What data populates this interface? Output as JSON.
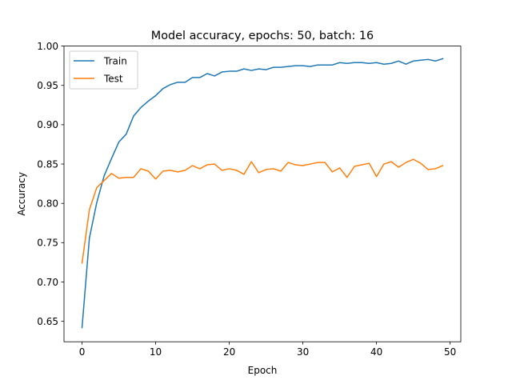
{
  "chart_data": {
    "type": "line",
    "title": "Model accuracy, epochs: 50, batch: 16",
    "xlabel": "Epoch",
    "ylabel": "Accuracy",
    "xlim": [
      -2.45,
      51.45
    ],
    "ylim": [
      0.624,
      1.0
    ],
    "xticks": [
      0,
      10,
      20,
      30,
      40,
      50
    ],
    "xtick_labels": [
      "0",
      "10",
      "20",
      "30",
      "40",
      "50"
    ],
    "yticks": [
      0.65,
      0.7,
      0.75,
      0.8,
      0.85,
      0.9,
      0.95,
      1.0
    ],
    "ytick_labels": [
      "0.65",
      "0.70",
      "0.75",
      "0.80",
      "0.85",
      "0.90",
      "0.95",
      "1.00"
    ],
    "grid": false,
    "legend": {
      "position": "top-left",
      "entries": [
        "Train",
        "Test"
      ]
    },
    "x": [
      0,
      1,
      2,
      3,
      4,
      5,
      6,
      7,
      8,
      9,
      10,
      11,
      12,
      13,
      14,
      15,
      16,
      17,
      18,
      19,
      20,
      21,
      22,
      23,
      24,
      25,
      26,
      27,
      28,
      29,
      30,
      31,
      32,
      33,
      34,
      35,
      36,
      37,
      38,
      39,
      40,
      41,
      42,
      43,
      44,
      45,
      46,
      47,
      48,
      49
    ],
    "series": [
      {
        "name": "Train",
        "color": "#1f77b4",
        "values": [
          0.642,
          0.756,
          0.801,
          0.835,
          0.857,
          0.878,
          0.888,
          0.911,
          0.922,
          0.93,
          0.937,
          0.946,
          0.951,
          0.954,
          0.954,
          0.96,
          0.96,
          0.965,
          0.962,
          0.967,
          0.968,
          0.968,
          0.971,
          0.969,
          0.971,
          0.97,
          0.973,
          0.973,
          0.974,
          0.975,
          0.975,
          0.974,
          0.976,
          0.976,
          0.976,
          0.979,
          0.978,
          0.979,
          0.979,
          0.978,
          0.979,
          0.977,
          0.978,
          0.981,
          0.977,
          0.981,
          0.982,
          0.983,
          0.981,
          0.984
        ]
      },
      {
        "name": "Test",
        "color": "#ff7f0e",
        "values": [
          0.724,
          0.792,
          0.82,
          0.829,
          0.838,
          0.832,
          0.833,
          0.833,
          0.844,
          0.841,
          0.831,
          0.841,
          0.842,
          0.84,
          0.842,
          0.848,
          0.844,
          0.849,
          0.85,
          0.842,
          0.844,
          0.842,
          0.837,
          0.853,
          0.839,
          0.843,
          0.844,
          0.841,
          0.852,
          0.849,
          0.848,
          0.85,
          0.852,
          0.852,
          0.84,
          0.845,
          0.833,
          0.847,
          0.849,
          0.851,
          0.834,
          0.85,
          0.853,
          0.846,
          0.852,
          0.856,
          0.851,
          0.843,
          0.844,
          0.848
        ]
      }
    ]
  }
}
